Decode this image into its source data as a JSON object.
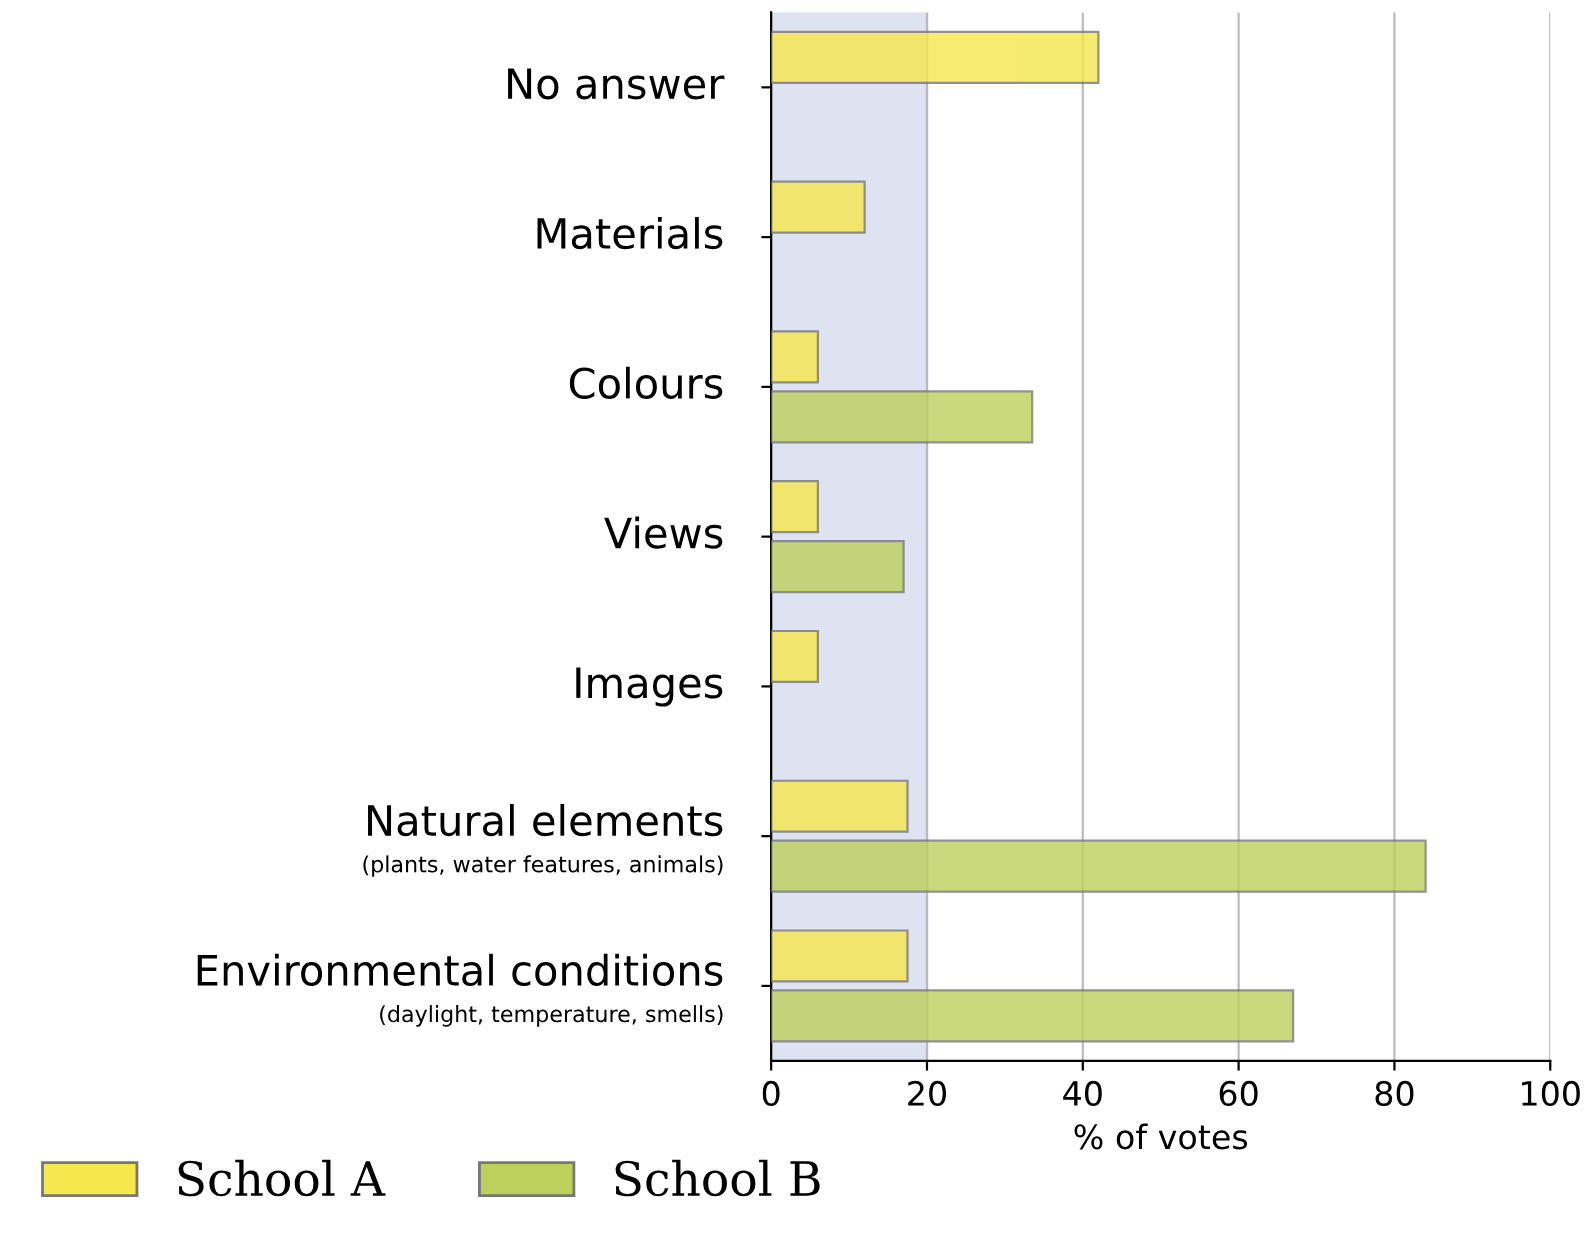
{
  "chart_data": {
    "type": "bar",
    "orientation": "horizontal",
    "xlabel": "% of votes",
    "categories": [
      "No answer",
      "Materials",
      "Colours",
      "Views",
      "Images",
      "Natural elements\n(plants, water features, animals)",
      "Environmental conditions\n(daylight, temperature, smells)"
    ],
    "series": [
      {
        "name": "School A",
        "color": "#f5e74e",
        "values": [
          42,
          12,
          6,
          6,
          6,
          17.5,
          17.5
        ]
      },
      {
        "name": "School B",
        "color": "#bdd05c",
        "values": [
          null,
          null,
          33.5,
          17,
          null,
          84,
          67
        ]
      }
    ],
    "xlim": [
      0,
      100
    ],
    "xticks": [
      0,
      20,
      40,
      60,
      80,
      100
    ],
    "grid": "x",
    "legend": "bottom left",
    "bands": [
      {
        "axis": "x",
        "from": 0,
        "to": 20,
        "label": null,
        "color": "#dfe2f0"
      }
    ]
  }
}
